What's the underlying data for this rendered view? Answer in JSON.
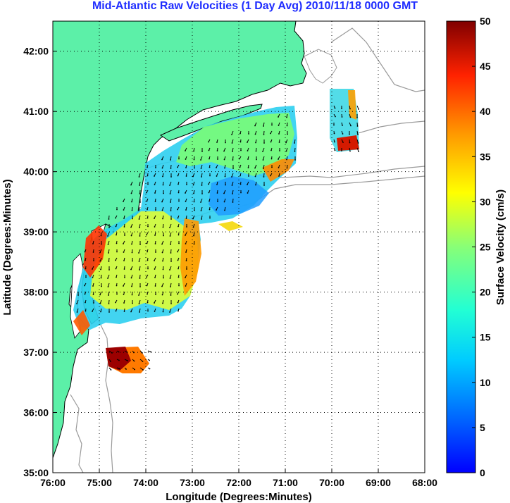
{
  "title": "Mid-Atlantic Raw Velocities (1 Day Avg) 2010/11/18 0000 GMT",
  "map": {
    "xlabel": "Longitude (Degrees:Minutes)",
    "ylabel": "Latitude (Degrees:Minutes)",
    "x_ticks": [
      "76:00",
      "75:00",
      "74:00",
      "73:00",
      "72:00",
      "71:00",
      "70:00",
      "69:00",
      "68:00"
    ],
    "y_ticks": [
      "42:00",
      "41:00",
      "40:00",
      "39:00",
      "38:00",
      "37:00",
      "36:00",
      "35:00"
    ],
    "lon_range": [
      -76,
      -68
    ],
    "lat_range": [
      35,
      42.5
    ],
    "grid": "dotted",
    "land_color": "#5cf0a8",
    "coast_color": "#000000",
    "bathymetry_color": "#9a9a9a"
  },
  "colorbar": {
    "label": "Surface Velocity (cm/s)",
    "ticks": [
      "50",
      "45",
      "40",
      "35",
      "30",
      "25",
      "20",
      "15",
      "10",
      "5",
      "0"
    ],
    "range": [
      0,
      50
    ],
    "colormap": "jet"
  }
}
